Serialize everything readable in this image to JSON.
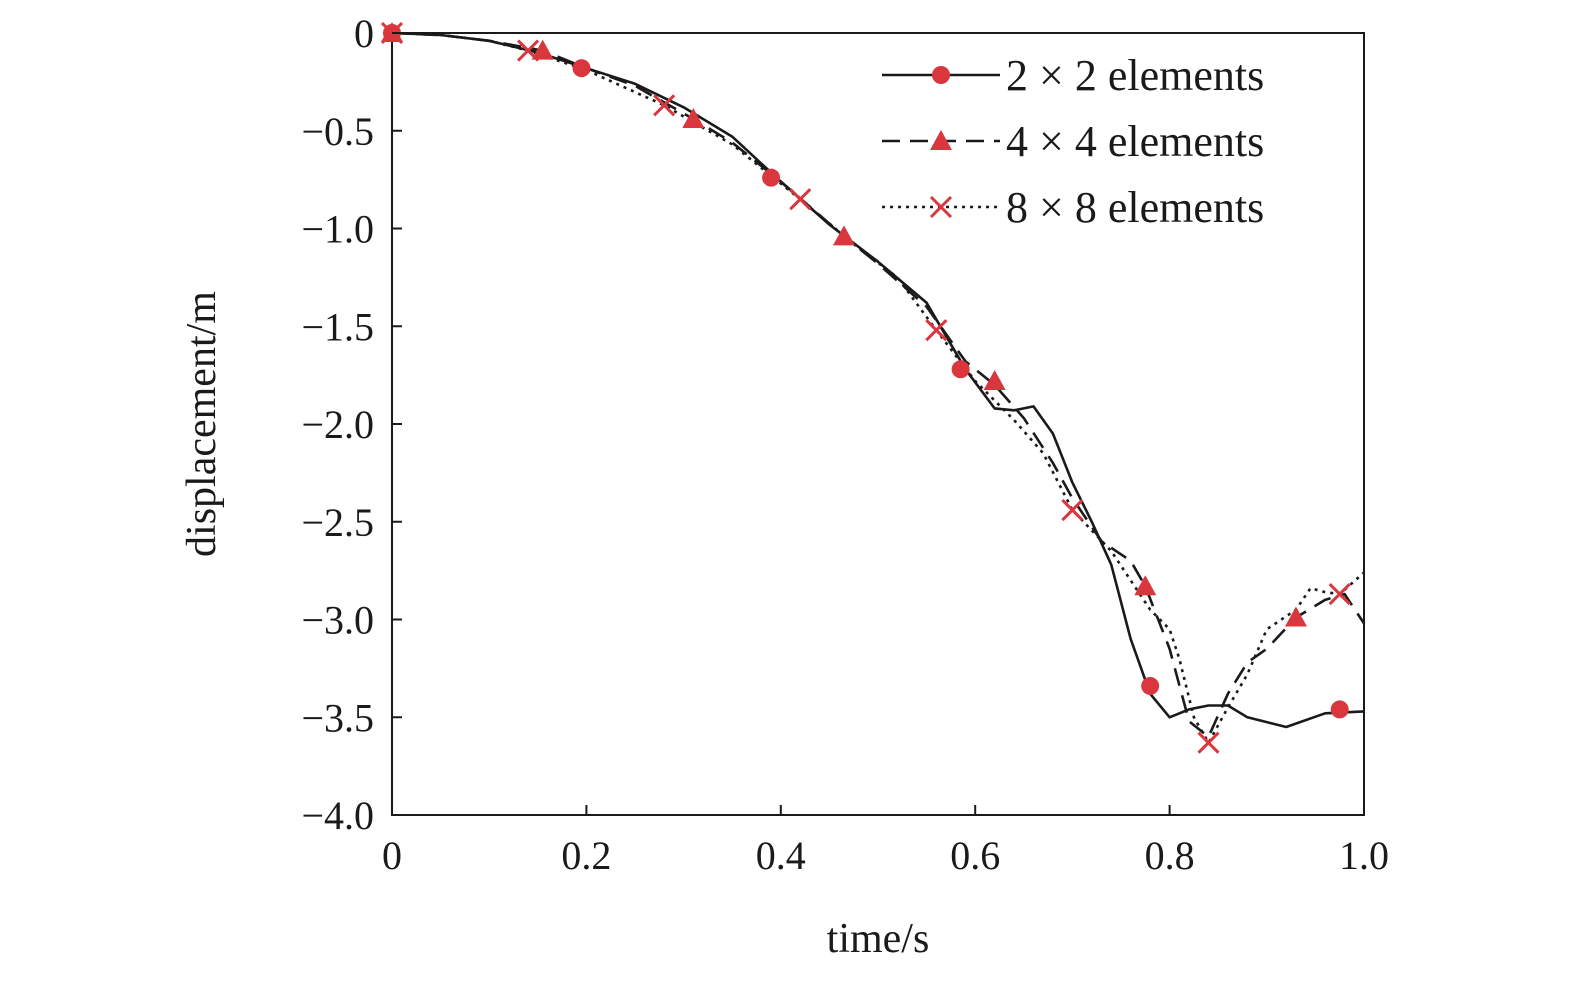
{
  "chart_data": {
    "type": "line",
    "xlabel": "time/s",
    "ylabel": "displacement/m",
    "xlim": [
      0,
      1.0
    ],
    "ylim": [
      -4.0,
      0
    ],
    "x_ticks": [
      "0",
      "0.2",
      "0.4",
      "0.6",
      "0.8",
      "1.0"
    ],
    "y_ticks": [
      "0",
      "−0.5",
      "−1.0",
      "−1.5",
      "−2.0",
      "−2.5",
      "−3.0",
      "−3.5",
      "−4.0"
    ],
    "x_tick_values": [
      0,
      0.2,
      0.4,
      0.6,
      0.8,
      1.0
    ],
    "y_tick_values": [
      0,
      -0.5,
      -1.0,
      -1.5,
      -2.0,
      -2.5,
      -3.0,
      -3.5,
      -4.0
    ],
    "grid": false,
    "legend_position": "top-right",
    "marker_color": "#d9363e",
    "series": [
      {
        "name": "2 × 2 elements",
        "line_style": "solid",
        "marker": "circle",
        "points": [
          [
            0,
            0
          ],
          [
            0.05,
            -0.01
          ],
          [
            0.1,
            -0.04
          ],
          [
            0.15,
            -0.1
          ],
          [
            0.2,
            -0.18
          ],
          [
            0.25,
            -0.26
          ],
          [
            0.3,
            -0.38
          ],
          [
            0.35,
            -0.53
          ],
          [
            0.4,
            -0.76
          ],
          [
            0.45,
            -0.98
          ],
          [
            0.5,
            -1.17
          ],
          [
            0.55,
            -1.38
          ],
          [
            0.59,
            -1.72
          ],
          [
            0.62,
            -1.92
          ],
          [
            0.64,
            -1.93
          ],
          [
            0.66,
            -1.91
          ],
          [
            0.68,
            -2.05
          ],
          [
            0.7,
            -2.3
          ],
          [
            0.72,
            -2.5
          ],
          [
            0.74,
            -2.72
          ],
          [
            0.76,
            -3.1
          ],
          [
            0.78,
            -3.38
          ],
          [
            0.8,
            -3.5
          ],
          [
            0.82,
            -3.46
          ],
          [
            0.84,
            -3.44
          ],
          [
            0.86,
            -3.44
          ],
          [
            0.88,
            -3.5
          ],
          [
            0.92,
            -3.55
          ],
          [
            0.96,
            -3.48
          ],
          [
            1.0,
            -3.47
          ]
        ],
        "markers": [
          [
            0,
            0
          ],
          [
            0.195,
            -0.18
          ],
          [
            0.39,
            -0.74
          ],
          [
            0.585,
            -1.72
          ],
          [
            0.78,
            -3.34
          ],
          [
            0.975,
            -3.46
          ]
        ]
      },
      {
        "name": "4 × 4 elements",
        "line_style": "dashed",
        "marker": "triangle",
        "points": [
          [
            0,
            0
          ],
          [
            0.05,
            -0.01
          ],
          [
            0.1,
            -0.04
          ],
          [
            0.155,
            -0.09
          ],
          [
            0.2,
            -0.18
          ],
          [
            0.25,
            -0.27
          ],
          [
            0.31,
            -0.44
          ],
          [
            0.35,
            -0.56
          ],
          [
            0.4,
            -0.76
          ],
          [
            0.465,
            -1.04
          ],
          [
            0.5,
            -1.18
          ],
          [
            0.55,
            -1.4
          ],
          [
            0.59,
            -1.68
          ],
          [
            0.62,
            -1.8
          ],
          [
            0.65,
            -1.97
          ],
          [
            0.68,
            -2.2
          ],
          [
            0.7,
            -2.38
          ],
          [
            0.73,
            -2.6
          ],
          [
            0.76,
            -2.7
          ],
          [
            0.775,
            -2.83
          ],
          [
            0.8,
            -3.15
          ],
          [
            0.82,
            -3.52
          ],
          [
            0.84,
            -3.6
          ],
          [
            0.86,
            -3.38
          ],
          [
            0.88,
            -3.22
          ],
          [
            0.9,
            -3.15
          ],
          [
            0.93,
            -2.99
          ],
          [
            0.96,
            -2.9
          ],
          [
            0.98,
            -2.87
          ],
          [
            1.0,
            -3.02
          ]
        ],
        "markers": [
          [
            0,
            0
          ],
          [
            0.155,
            -0.09
          ],
          [
            0.31,
            -0.44
          ],
          [
            0.465,
            -1.04
          ],
          [
            0.62,
            -1.78
          ],
          [
            0.775,
            -2.83
          ],
          [
            0.93,
            -2.99
          ]
        ]
      },
      {
        "name": "8 × 8 elements",
        "line_style": "dotted",
        "marker": "cross",
        "points": [
          [
            0,
            0
          ],
          [
            0.05,
            -0.01
          ],
          [
            0.1,
            -0.04
          ],
          [
            0.14,
            -0.09
          ],
          [
            0.2,
            -0.19
          ],
          [
            0.28,
            -0.37
          ],
          [
            0.35,
            -0.57
          ],
          [
            0.42,
            -0.85
          ],
          [
            0.48,
            -1.1
          ],
          [
            0.52,
            -1.25
          ],
          [
            0.56,
            -1.52
          ],
          [
            0.6,
            -1.78
          ],
          [
            0.64,
            -1.98
          ],
          [
            0.67,
            -2.15
          ],
          [
            0.7,
            -2.44
          ],
          [
            0.74,
            -2.65
          ],
          [
            0.76,
            -2.8
          ],
          [
            0.78,
            -2.95
          ],
          [
            0.8,
            -3.05
          ],
          [
            0.81,
            -3.2
          ],
          [
            0.825,
            -3.5
          ],
          [
            0.84,
            -3.63
          ],
          [
            0.86,
            -3.45
          ],
          [
            0.88,
            -3.28
          ],
          [
            0.9,
            -3.05
          ],
          [
            0.93,
            -2.95
          ],
          [
            0.945,
            -2.84
          ],
          [
            0.96,
            -2.86
          ],
          [
            0.975,
            -2.87
          ],
          [
            1.0,
            -2.76
          ]
        ],
        "markers": [
          [
            0,
            0
          ],
          [
            0.14,
            -0.09
          ],
          [
            0.28,
            -0.37
          ],
          [
            0.42,
            -0.85
          ],
          [
            0.56,
            -1.52
          ],
          [
            0.7,
            -2.44
          ],
          [
            0.84,
            -3.63
          ],
          [
            0.975,
            -2.87
          ]
        ]
      }
    ]
  }
}
